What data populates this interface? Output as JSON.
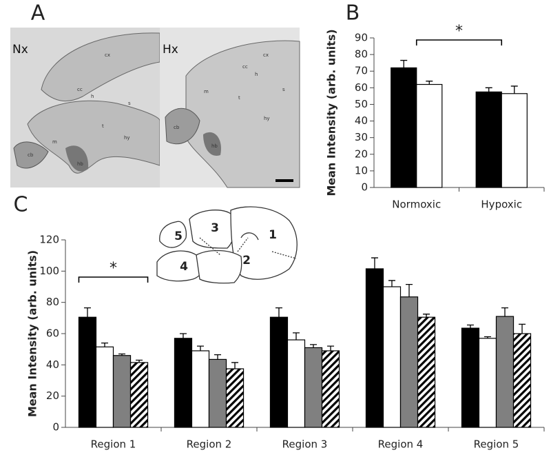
{
  "panel_labels": [
    "A",
    "B",
    "C"
  ],
  "images": [
    {
      "label": "Nx",
      "annotations": [
        "cx",
        "cc",
        "h",
        "s",
        "t",
        "m",
        "hy",
        "cb",
        "hb"
      ]
    },
    {
      "label": "Hx",
      "annotations": [
        "cx",
        "cc",
        "h",
        "m",
        "t",
        "s",
        "hy",
        "cb",
        "hb"
      ]
    }
  ],
  "diagram": {
    "regions": [
      "5",
      "3",
      "1",
      "4",
      "2"
    ]
  },
  "chart_data": [
    {
      "type": "bar",
      "y_label": "Mean Intensity (arb. units)",
      "categories": [
        "Normoxic",
        "Hypoxic"
      ],
      "series": [
        {
          "color": "#000000",
          "values": [
            72,
            57.5
          ],
          "errors": [
            4.5,
            2.5
          ]
        },
        {
          "color": "#ffffff",
          "values": [
            62,
            56.5
          ],
          "errors": [
            2,
            4.5
          ]
        }
      ],
      "ylim": [
        0,
        90
      ],
      "yticks": [
        0,
        10,
        20,
        30,
        40,
        50,
        60,
        70,
        80,
        90
      ],
      "annotation": "*"
    },
    {
      "type": "bar",
      "y_label": "Mean Intensity (arb. units)",
      "categories": [
        "Region 1",
        "Region 2",
        "Region 3",
        "Region 4",
        "Region 5"
      ],
      "series": [
        {
          "color": "#000000",
          "values": [
            70.5,
            57,
            70.5,
            101.5,
            63.5
          ],
          "errors": [
            6,
            3,
            6,
            7,
            2
          ]
        },
        {
          "color": "#ffffff",
          "values": [
            51.5,
            49,
            56,
            90,
            57
          ],
          "errors": [
            2.5,
            3,
            4.5,
            4,
            1
          ]
        },
        {
          "color": "#808080",
          "values": [
            46,
            43.5,
            51,
            83.5,
            71
          ],
          "errors": [
            1,
            3,
            2,
            8,
            5.5
          ]
        },
        {
          "color": "#ffffff",
          "hatch": true,
          "values": [
            41.5,
            37.5,
            49,
            70.5,
            60
          ],
          "errors": [
            1.5,
            4,
            3,
            2,
            6
          ]
        }
      ],
      "ylim": [
        0,
        120
      ],
      "yticks": [
        0,
        20,
        40,
        60,
        80,
        100,
        120
      ],
      "annotation": "*"
    }
  ]
}
